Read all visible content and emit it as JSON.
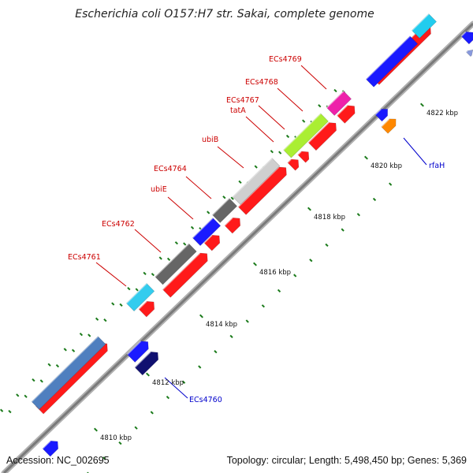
{
  "title": "Escherichia coli O157:H7 str. Sakai, complete genome",
  "footer": {
    "accession": "Accession: NC_002695",
    "summary": "Topology: circular; Length: 5,498,450 bp; Genes: 5,369"
  },
  "ticks": [
    {
      "label": "4810 kbp"
    },
    {
      "label": "4812 kbp"
    },
    {
      "label": "4814 kbp"
    },
    {
      "label": "4816 kbp"
    },
    {
      "label": "4818 kbp"
    },
    {
      "label": "4820 kbp"
    },
    {
      "label": "4822 kbp"
    }
  ],
  "gene_labels": [
    {
      "text": "ECs4761",
      "color": "#cc0000"
    },
    {
      "text": "ECs4762",
      "color": "#cc0000"
    },
    {
      "text": "ubiE",
      "color": "#cc0000"
    },
    {
      "text": "ECs4764",
      "color": "#cc0000"
    },
    {
      "text": "ubiB",
      "color": "#cc0000"
    },
    {
      "text": "tatA",
      "color": "#cc0000"
    },
    {
      "text": "ECs4767",
      "color": "#cc0000"
    },
    {
      "text": "ECs4768",
      "color": "#cc0000"
    },
    {
      "text": "ECs4769",
      "color": "#cc0000"
    },
    {
      "text": "rfaH",
      "color": "#0000cc"
    },
    {
      "text": "ECs4760",
      "color": "#0000cc"
    }
  ],
  "colors": {
    "backbone": "#888888",
    "cds_forward": "#ff1a1a",
    "tick": "#1a7a1a"
  }
}
